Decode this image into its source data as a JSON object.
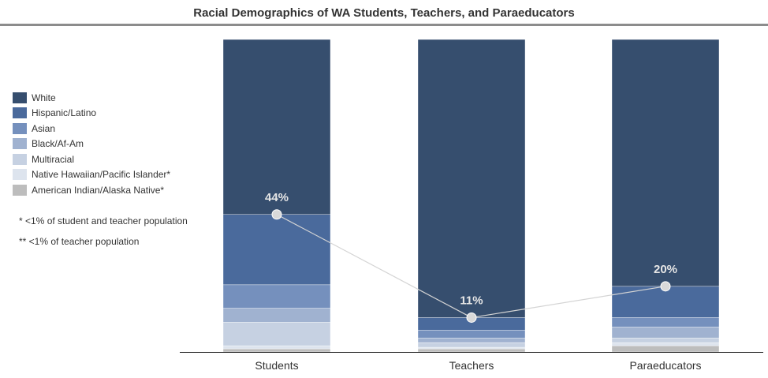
{
  "title": "Racial Demographics of WA Students, Teachers, and Paraeducators",
  "notes": {
    "single": "* <1% of student and teacher population",
    "double": "** <1% of teacher population"
  },
  "chart_data": {
    "type": "bar",
    "stacked": true,
    "orientation": "vertical",
    "categories": [
      "Students",
      "Teachers",
      "Paraeducators"
    ],
    "ylim": [
      0,
      100
    ],
    "series": [
      {
        "name": "American Indian/Alaska Native*",
        "color": "#bdbdbd",
        "values": [
          1,
          1,
          2
        ]
      },
      {
        "name": "Native Hawaiian/Pacific Islander*",
        "color": "#dde4ee",
        "values": [
          1,
          0.5,
          1
        ]
      },
      {
        "name": "Multiracial",
        "color": "#c6d1e2",
        "values": [
          7.5,
          1.5,
          1.5
        ]
      },
      {
        "name": "Black/Af-Am",
        "color": "#a0b2d0",
        "values": [
          4.5,
          1.5,
          3.5
        ]
      },
      {
        "name": "Asian",
        "color": "#7590bd",
        "values": [
          7.5,
          2.5,
          3
        ]
      },
      {
        "name": "Hispanic/Latino",
        "color": "#4a6a9c",
        "values": [
          22.5,
          4,
          10
        ]
      },
      {
        "name": "White",
        "color": "#364e6e",
        "values": [
          56,
          89,
          79
        ]
      }
    ],
    "annotations": {
      "series": "Hispanic/Latino",
      "labels": [
        "44%",
        "11%",
        "20%"
      ]
    },
    "legend_position": "left"
  }
}
